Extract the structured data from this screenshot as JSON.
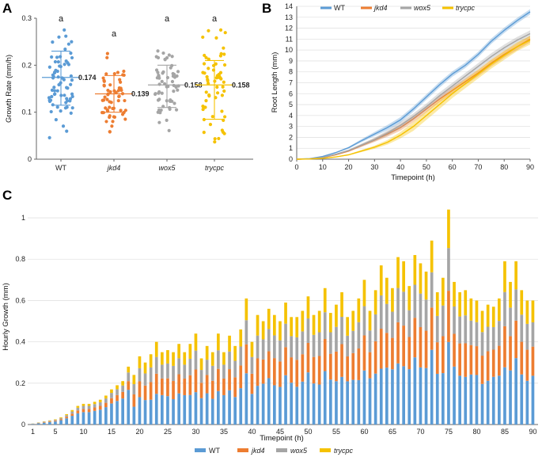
{
  "panels": {
    "a": "A",
    "b": "B",
    "c": "C"
  },
  "colors": {
    "WT": "#5b9bd5",
    "jkd4": "#ed7d31",
    "wox5": "#a5a5a5",
    "trycpc": "#f5c200"
  },
  "chart_data": [
    {
      "type": "scatter",
      "panel": "A",
      "title": "",
      "ylabel": "Growth Rate (mm/h)",
      "xlabel": "",
      "ylim": [
        0,
        0.3
      ],
      "yticks": [
        "0",
        "0.1",
        "0.2",
        "0.3"
      ],
      "categories": [
        "WT",
        "jkd4",
        "wox5",
        "trycpc"
      ],
      "series": [
        {
          "name": "WT",
          "mean": 0.174,
          "mean_label": "0.174",
          "sd": [
            0.115,
            0.23
          ],
          "letter": "a",
          "n": 70
        },
        {
          "name": "jkd4",
          "mean": 0.139,
          "mean_label": "0.139",
          "sd": [
            0.1,
            0.178
          ],
          "letter": "a",
          "n": 60
        },
        {
          "name": "wox5",
          "mean": 0.158,
          "mean_label": "0.158",
          "sd": [
            0.11,
            0.2
          ],
          "letter": "a",
          "n": 60
        },
        {
          "name": "trycpc",
          "mean": 0.158,
          "mean_label": "0.158",
          "sd": [
            0.085,
            0.21
          ],
          "letter": "a",
          "n": 60
        }
      ]
    },
    {
      "type": "line",
      "panel": "B",
      "title": "",
      "xlabel": "Timepoint (h)",
      "ylabel": "Root Length (mm)",
      "xlim": [
        0,
        90
      ],
      "ylim": [
        0,
        14
      ],
      "xticks": [
        "0",
        "10",
        "20",
        "30",
        "40",
        "50",
        "60",
        "70",
        "80",
        "90"
      ],
      "yticks": [
        "0",
        "1",
        "2",
        "3",
        "4",
        "5",
        "6",
        "7",
        "8",
        "9",
        "10",
        "11",
        "12",
        "13",
        "14"
      ],
      "legend": [
        "WT",
        "jkd4",
        "wox5",
        "trycpc"
      ],
      "x": [
        0,
        5,
        10,
        15,
        20,
        25,
        30,
        35,
        40,
        45,
        50,
        55,
        60,
        65,
        70,
        75,
        80,
        85,
        90
      ],
      "series": [
        {
          "name": "WT",
          "values": [
            0,
            0.05,
            0.25,
            0.6,
            1.05,
            1.7,
            2.3,
            2.9,
            3.6,
            4.6,
            5.7,
            6.8,
            7.8,
            8.6,
            9.6,
            10.8,
            11.8,
            12.7,
            13.5
          ],
          "band": 0.25
        },
        {
          "name": "jkd4",
          "values": [
            0,
            0.03,
            0.15,
            0.4,
            0.75,
            1.25,
            1.75,
            2.3,
            2.9,
            3.7,
            4.6,
            5.5,
            6.3,
            7.1,
            7.9,
            8.8,
            9.6,
            10.3,
            11.0
          ],
          "band": 0.3
        },
        {
          "name": "wox5",
          "values": [
            0,
            0.03,
            0.17,
            0.45,
            0.8,
            1.3,
            1.8,
            2.4,
            3.1,
            3.9,
            4.8,
            5.8,
            6.7,
            7.6,
            8.5,
            9.4,
            10.2,
            10.9,
            11.5
          ],
          "band": 0.3
        },
        {
          "name": "trycpc",
          "values": [
            0,
            0.02,
            0.08,
            0.2,
            0.4,
            0.75,
            1.1,
            1.55,
            2.2,
            3.0,
            4.0,
            5.0,
            6.0,
            6.9,
            7.8,
            8.7,
            9.5,
            10.3,
            10.9
          ],
          "band": 0.4
        }
      ]
    },
    {
      "type": "bar",
      "panel": "C",
      "stacked": true,
      "title": "",
      "xlabel": "Timepoint (h)",
      "ylabel": "Hourly Growth (mm)",
      "ylim": [
        0,
        1.05
      ],
      "yticks": [
        "0",
        "0.2",
        "0.4",
        "0.6",
        "0.8",
        "1"
      ],
      "xticks": [
        "1",
        "5",
        "10",
        "15",
        "20",
        "25",
        "30",
        "35",
        "40",
        "45",
        "50",
        "55",
        "60",
        "65",
        "70",
        "75",
        "80",
        "85",
        "90"
      ],
      "categories": [
        1,
        2,
        3,
        4,
        5,
        6,
        7,
        8,
        9,
        10,
        11,
        12,
        13,
        14,
        15,
        16,
        17,
        18,
        19,
        20,
        21,
        22,
        23,
        24,
        25,
        26,
        27,
        28,
        29,
        30,
        31,
        32,
        33,
        34,
        35,
        36,
        37,
        38,
        39,
        40,
        41,
        42,
        43,
        44,
        45,
        46,
        47,
        48,
        49,
        50,
        51,
        52,
        53,
        54,
        55,
        56,
        57,
        58,
        59,
        60,
        61,
        62,
        63,
        64,
        65,
        66,
        67,
        68,
        69,
        70,
        71,
        72,
        73,
        74,
        75,
        76,
        77,
        78,
        79,
        80,
        81,
        82,
        83,
        84,
        85,
        86,
        87,
        88,
        89,
        90
      ],
      "legend": [
        "WT",
        "jkd4",
        "wox5",
        "trycpc"
      ],
      "totals": [
        0.005,
        0.01,
        0.015,
        0.02,
        0.025,
        0.035,
        0.05,
        0.07,
        0.09,
        0.1,
        0.1,
        0.11,
        0.12,
        0.14,
        0.17,
        0.19,
        0.21,
        0.28,
        0.24,
        0.33,
        0.3,
        0.34,
        0.4,
        0.35,
        0.36,
        0.35,
        0.39,
        0.35,
        0.39,
        0.44,
        0.32,
        0.38,
        0.35,
        0.44,
        0.35,
        0.43,
        0.38,
        0.46,
        0.61,
        0.4,
        0.53,
        0.5,
        0.56,
        0.53,
        0.5,
        0.59,
        0.52,
        0.52,
        0.55,
        0.62,
        0.53,
        0.55,
        0.66,
        0.54,
        0.58,
        0.64,
        0.52,
        0.55,
        0.61,
        0.7,
        0.55,
        0.65,
        0.77,
        0.71,
        0.66,
        0.81,
        0.79,
        0.67,
        0.82,
        0.78,
        0.74,
        0.89,
        0.64,
        0.71,
        1.04,
        0.69,
        0.64,
        0.65,
        0.61,
        0.6,
        0.55,
        0.58,
        0.57,
        0.61,
        0.79,
        0.69,
        0.79,
        0.65,
        0.6,
        0.6
      ],
      "fractions": {
        "WT": 0.38,
        "jkd4": 0.24,
        "wox5": 0.2,
        "trycpc": 0.18
      }
    }
  ]
}
